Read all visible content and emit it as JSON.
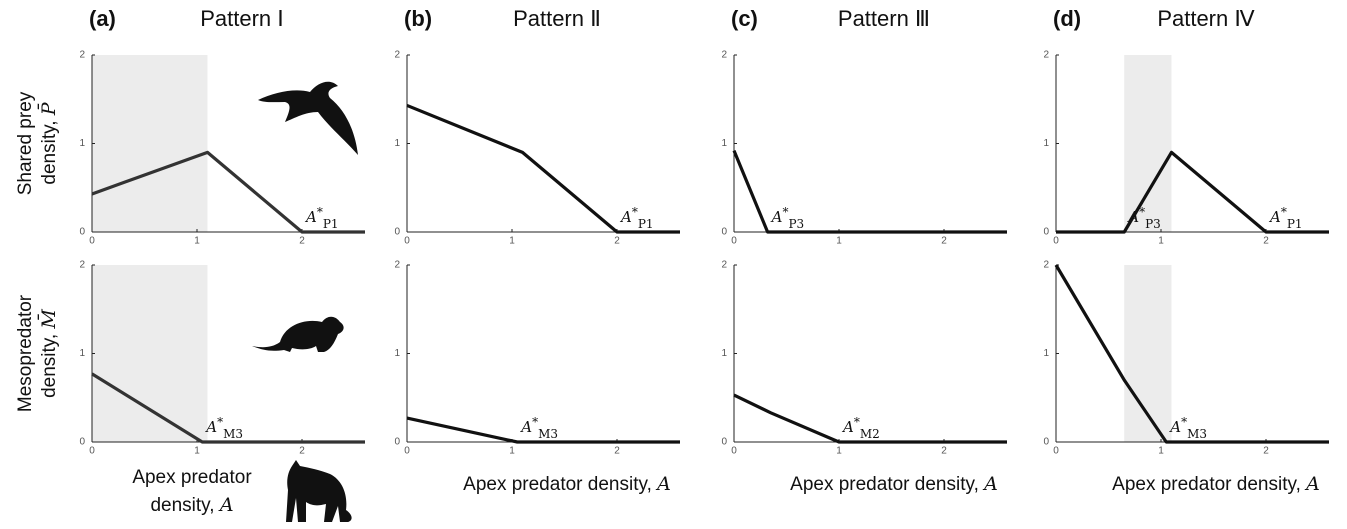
{
  "chart_data": [
    {
      "type": "line",
      "panel": "(a)",
      "title": "Pattern Ⅰ",
      "ylabel": [
        "Shared prey",
        "density, "
      ],
      "yvar": "P̄",
      "x": [
        0,
        1.1,
        2,
        2.6
      ],
      "series": [
        {
          "color": "#333",
          "values": [
            0.43,
            0.9,
            0,
            0
          ]
        }
      ],
      "xlim": [
        0,
        2.6
      ],
      "ylim": [
        0,
        2
      ],
      "xticks": [
        0,
        1,
        2
      ],
      "yticks": [
        0,
        1,
        2
      ],
      "shade": [
        0,
        1.1
      ],
      "annotations": [
        {
          "label": "A",
          "sup": "*",
          "sub": "P1",
          "x": 2
        }
      ]
    },
    {
      "type": "line",
      "panel": "(b)",
      "title": "Pattern Ⅱ",
      "x": [
        0,
        1.1,
        2,
        2.6
      ],
      "series": [
        {
          "color": "#111",
          "values": [
            1.43,
            0.9,
            0,
            0
          ]
        }
      ],
      "xlim": [
        0,
        2.6
      ],
      "ylim": [
        0,
        2
      ],
      "xticks": [
        0,
        1,
        2
      ],
      "yticks": [
        0,
        1,
        2
      ],
      "annotations": [
        {
          "label": "A",
          "sup": "*",
          "sub": "P1",
          "x": 2
        }
      ]
    },
    {
      "type": "line",
      "panel": "(c)",
      "title": "Pattern Ⅲ",
      "x": [
        0,
        0.32,
        2.6
      ],
      "series": [
        {
          "color": "#111",
          "values": [
            0.92,
            0,
            0
          ]
        }
      ],
      "xlim": [
        0,
        2.6
      ],
      "ylim": [
        0,
        2
      ],
      "xticks": [
        0,
        1,
        2
      ],
      "yticks": [
        0,
        1,
        2
      ],
      "annotations": [
        {
          "label": "A",
          "sup": "*",
          "sub": "P3",
          "x": 0.32
        }
      ]
    },
    {
      "type": "line",
      "panel": "(d)",
      "title": "Pattern Ⅳ",
      "x": [
        0,
        0.65,
        1.1,
        2,
        2.6
      ],
      "series": [
        {
          "color": "#111",
          "values": [
            0,
            0,
            0.9,
            0,
            0
          ]
        }
      ],
      "xlim": [
        0,
        2.6
      ],
      "ylim": [
        0,
        2
      ],
      "xticks": [
        0,
        1,
        2
      ],
      "yticks": [
        0,
        1,
        2
      ],
      "shade": [
        0.65,
        1.1
      ],
      "annotations": [
        {
          "label": "A",
          "sup": "*",
          "sub": "P3",
          "x": 0.65
        },
        {
          "label": "A",
          "sup": "*",
          "sub": "P1",
          "x": 2
        }
      ]
    },
    {
      "type": "line",
      "ylabel": [
        "Mesopredator",
        "density, "
      ],
      "yvar": "M̄",
      "xlabel": [
        "Apex predator",
        "density, "
      ],
      "xvar": "A",
      "x": [
        0,
        1.05,
        2.6
      ],
      "series": [
        {
          "color": "#333",
          "values": [
            0.77,
            0,
            0
          ]
        }
      ],
      "xlim": [
        0,
        2.6
      ],
      "ylim": [
        0,
        2
      ],
      "xticks": [
        0,
        1,
        2
      ],
      "yticks": [
        0,
        1,
        2
      ],
      "shade": [
        0,
        1.1
      ],
      "annotations": [
        {
          "label": "A",
          "sup": "*",
          "sub": "M3",
          "x": 1.05
        }
      ]
    },
    {
      "type": "line",
      "xlabel": [
        "Apex predator density, "
      ],
      "xvar": "A",
      "x": [
        0,
        1.05,
        2.6
      ],
      "series": [
        {
          "color": "#111",
          "values": [
            0.27,
            0,
            0
          ]
        }
      ],
      "xlim": [
        0,
        2.6
      ],
      "ylim": [
        0,
        2
      ],
      "xticks": [
        0,
        1,
        2
      ],
      "yticks": [
        0,
        1,
        2
      ],
      "annotations": [
        {
          "label": "A",
          "sup": "*",
          "sub": "M3",
          "x": 1.05
        }
      ]
    },
    {
      "type": "line",
      "xlabel": [
        "Apex predator density, "
      ],
      "xvar": "A",
      "x": [
        0,
        0.35,
        1,
        2.6
      ],
      "series": [
        {
          "color": "#111",
          "values": [
            0.53,
            0.33,
            0,
            0
          ]
        }
      ],
      "xlim": [
        0,
        2.6
      ],
      "ylim": [
        0,
        2
      ],
      "xticks": [
        0,
        1,
        2
      ],
      "yticks": [
        0,
        1,
        2
      ],
      "annotations": [
        {
          "label": "A",
          "sup": "*",
          "sub": "M2",
          "x": 1
        }
      ]
    },
    {
      "type": "line",
      "xlabel": [
        "Apex predator density, "
      ],
      "xvar": "A",
      "x": [
        0,
        0.65,
        1.05,
        2.6
      ],
      "series": [
        {
          "color": "#111",
          "values": [
            2,
            0.7,
            0,
            0
          ]
        }
      ],
      "xlim": [
        0,
        2.6
      ],
      "ylim": [
        0,
        2
      ],
      "xticks": [
        0,
        1,
        2
      ],
      "yticks": [
        0,
        1,
        2
      ],
      "shade": [
        0.65,
        1.1
      ],
      "annotations": [
        {
          "label": "A",
          "sup": "*",
          "sub": "M3",
          "x": 1.05
        }
      ]
    }
  ]
}
